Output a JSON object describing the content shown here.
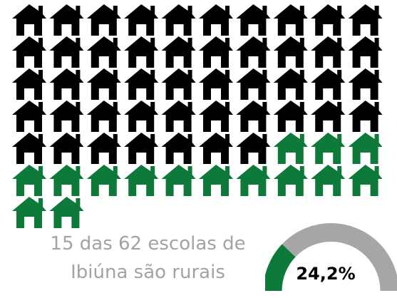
{
  "chart_data": [
    {
      "type": "pictogram",
      "icon": "house-icon",
      "total": 62,
      "highlighted": 15,
      "highlight_color": "#0d7a3a",
      "base_color": "#000000",
      "caption": [
        "15 das 62 escolas de",
        "Ibiúna são rurais"
      ]
    },
    {
      "type": "gauge",
      "value": 24.2,
      "label": "24,2%",
      "fill_color": "#0d7a3a",
      "track_color": "#a6a6a6"
    }
  ]
}
